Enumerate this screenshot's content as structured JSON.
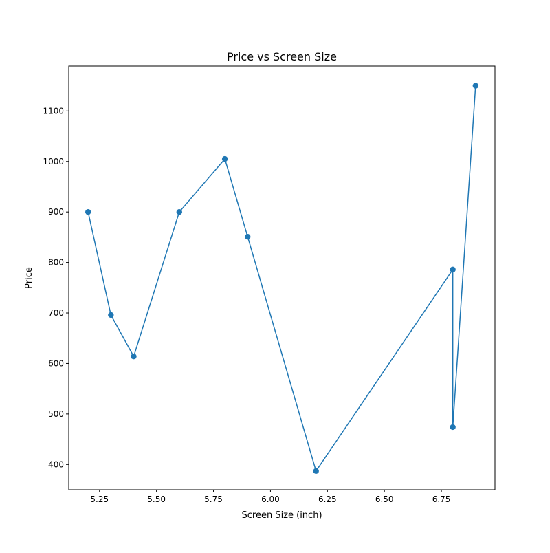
{
  "chart_data": {
    "type": "line",
    "title": "Price vs Screen Size",
    "xlabel": "Screen Size (inch)",
    "ylabel": "Price",
    "xlim": [
      5.115,
      6.985
    ],
    "ylim": [
      350,
      1189
    ],
    "xticks": [
      5.25,
      5.5,
      5.75,
      6.0,
      6.25,
      6.5,
      6.75
    ],
    "xtick_labels": [
      "5.25",
      "5.50",
      "5.75",
      "6.00",
      "6.25",
      "6.50",
      "6.75"
    ],
    "yticks": [
      400,
      500,
      600,
      700,
      800,
      900,
      1000,
      1100
    ],
    "ytick_labels": [
      "400",
      "500",
      "600",
      "700",
      "800",
      "900",
      "1000",
      "1100"
    ],
    "grid": false,
    "marker": "circle",
    "series": [
      {
        "color": "#1f77b4",
        "x": [
          5.2,
          5.3,
          5.4,
          5.6,
          5.8,
          5.9,
          6.2,
          6.8,
          6.8,
          6.9
        ],
        "y": [
          900,
          696,
          614,
          900,
          1005,
          851,
          387,
          786,
          474,
          1150
        ]
      }
    ]
  }
}
